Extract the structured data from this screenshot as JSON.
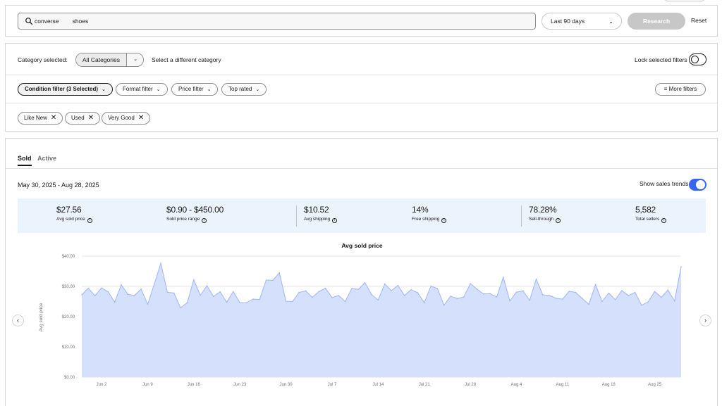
{
  "search": {
    "query": "converse   shoes",
    "placeholder": ""
  },
  "date_range_select": {
    "label": "Last 90 days"
  },
  "buttons": {
    "research": "Research",
    "reset": "Reset",
    "more_filters": "More filters"
  },
  "category": {
    "label": "Category selected:",
    "selected": "All Categories",
    "other_link": "Select a different category"
  },
  "lock_filters": {
    "label": "Lock selected filters",
    "on": false
  },
  "filters": [
    {
      "label": "Condition filter (3 Selected)",
      "selected": true
    },
    {
      "label": "Format filter",
      "selected": false
    },
    {
      "label": "Price filter",
      "selected": false
    },
    {
      "label": "Top rated",
      "selected": false
    }
  ],
  "chips": [
    "Like New",
    "Used",
    "Very Good"
  ],
  "tabs": {
    "sold": "Sold",
    "active": "Active"
  },
  "results": {
    "date_range": "May 30, 2025 - Aug 28, 2025",
    "show_trends_label": "Show sales trends",
    "show_trends_on": true
  },
  "stats": [
    {
      "value": "$27.56",
      "label": "Avg sold price"
    },
    {
      "value": "$0.90 - $450.00",
      "label": "Sold price range"
    },
    {
      "value": "$10.52",
      "label": "Avg shipping"
    },
    {
      "value": "14%",
      "label": "Free shipping"
    },
    {
      "value": "78.28%",
      "label": "Sell-through"
    },
    {
      "value": "5,582",
      "label": "Total sellers"
    }
  ],
  "colors": {
    "accent": "#3665f3",
    "area_fill": "#d5e0fc",
    "area_line": "#9fb6f5",
    "stats_bg": "#ebf3fc"
  },
  "chart_data": {
    "type": "area",
    "title": "Avg sold price",
    "xlabel": "",
    "ylabel": "Avg sold price",
    "ylim": [
      0,
      40
    ],
    "y_ticks": [
      "$0.00",
      "$10.00",
      "$20.00",
      "$30.00",
      "$40.00"
    ],
    "y_tick_values": [
      0,
      10,
      20,
      30,
      40
    ],
    "x_tick_labels": [
      "Jun 2",
      "Jun 9",
      "Jun 16",
      "Jun 23",
      "Jun 30",
      "Jul 7",
      "Jul 14",
      "Jul 21",
      "Jul 28",
      "Aug 4",
      "Aug 11",
      "Aug 18",
      "Aug 25"
    ],
    "x_tick_days": [
      3,
      10,
      17,
      24,
      31,
      38,
      45,
      52,
      59,
      66,
      73,
      80,
      87
    ],
    "grid": true,
    "legend": "none",
    "series": [
      {
        "values": [
          27.2,
          29.4,
          26.9,
          29.5,
          28.2,
          24.8,
          30.5,
          27.4,
          27.0,
          29.1,
          24.1,
          30.7,
          37.6,
          28.1,
          27.8,
          22.9,
          24.6,
          32.2,
          27.1,
          30.2,
          26.7,
          28.2,
          24.8,
          28.3,
          24.6,
          24.6,
          25.8,
          25.7,
          32.1,
          32.0,
          34.5,
          25.1,
          25.0,
          28.0,
          28.5,
          26.4,
          28.3,
          29.4,
          26.3,
          27.0,
          25.0,
          29.3,
          29.0,
          31.2,
          27.3,
          25.5,
          30.8,
          28.6,
          30.3,
          27.0,
          28.9,
          27.9,
          24.6,
          30.1,
          29.3,
          23.8,
          26.8,
          26.0,
          26.5,
          30.9,
          29.1,
          27.5,
          27.6,
          26.5,
          33.0,
          25.2,
          28.1,
          28.5,
          25.4,
          32.4,
          27.2,
          27.0,
          26.1,
          25.8,
          28.4,
          28.0,
          26.0,
          24.1,
          30.6,
          25.0,
          27.8,
          25.6,
          28.6,
          27.0,
          28.0,
          23.8,
          24.9,
          28.3,
          26.4,
          28.8,
          25.2,
          36.5
        ]
      }
    ]
  },
  "nav": {
    "prev": "‹",
    "next": "›"
  }
}
